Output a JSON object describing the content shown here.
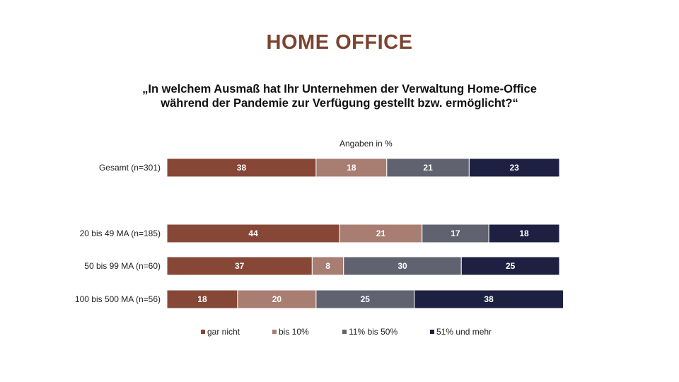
{
  "colors": {
    "title": "#7b4431",
    "series": [
      "#874736",
      "#a87d72",
      "#61626f",
      "#1d2041"
    ]
  },
  "chart_data": {
    "type": "bar",
    "orientation": "horizontal",
    "stacked": true,
    "title": "HOME OFFICE",
    "question_lines": [
      "„In welchem Ausmaß hat Ihr Unternehmen der Verwaltung Home-Office",
      "während der Pandemie zur Verfügung gestellt bzw. ermöglicht?“"
    ],
    "unit_label": "Angaben in %",
    "xlim": [
      0,
      100
    ],
    "grid": false,
    "legend_position": "bottom",
    "categories": [
      "Gesamt (n=301)",
      "20 bis 49 MA (n=185)",
      "50 bis 99 MA (n=60)",
      "100 bis 500 MA (n=56)"
    ],
    "series": [
      {
        "name": "gar nicht",
        "values": [
          38,
          44,
          37,
          18
        ]
      },
      {
        "name": "bis 10%",
        "values": [
          18,
          21,
          8,
          20
        ]
      },
      {
        "name": "11% bis 50%",
        "values": [
          21,
          17,
          30,
          25
        ]
      },
      {
        "name": "51% und mehr",
        "values": [
          23,
          18,
          25,
          38
        ]
      }
    ]
  }
}
